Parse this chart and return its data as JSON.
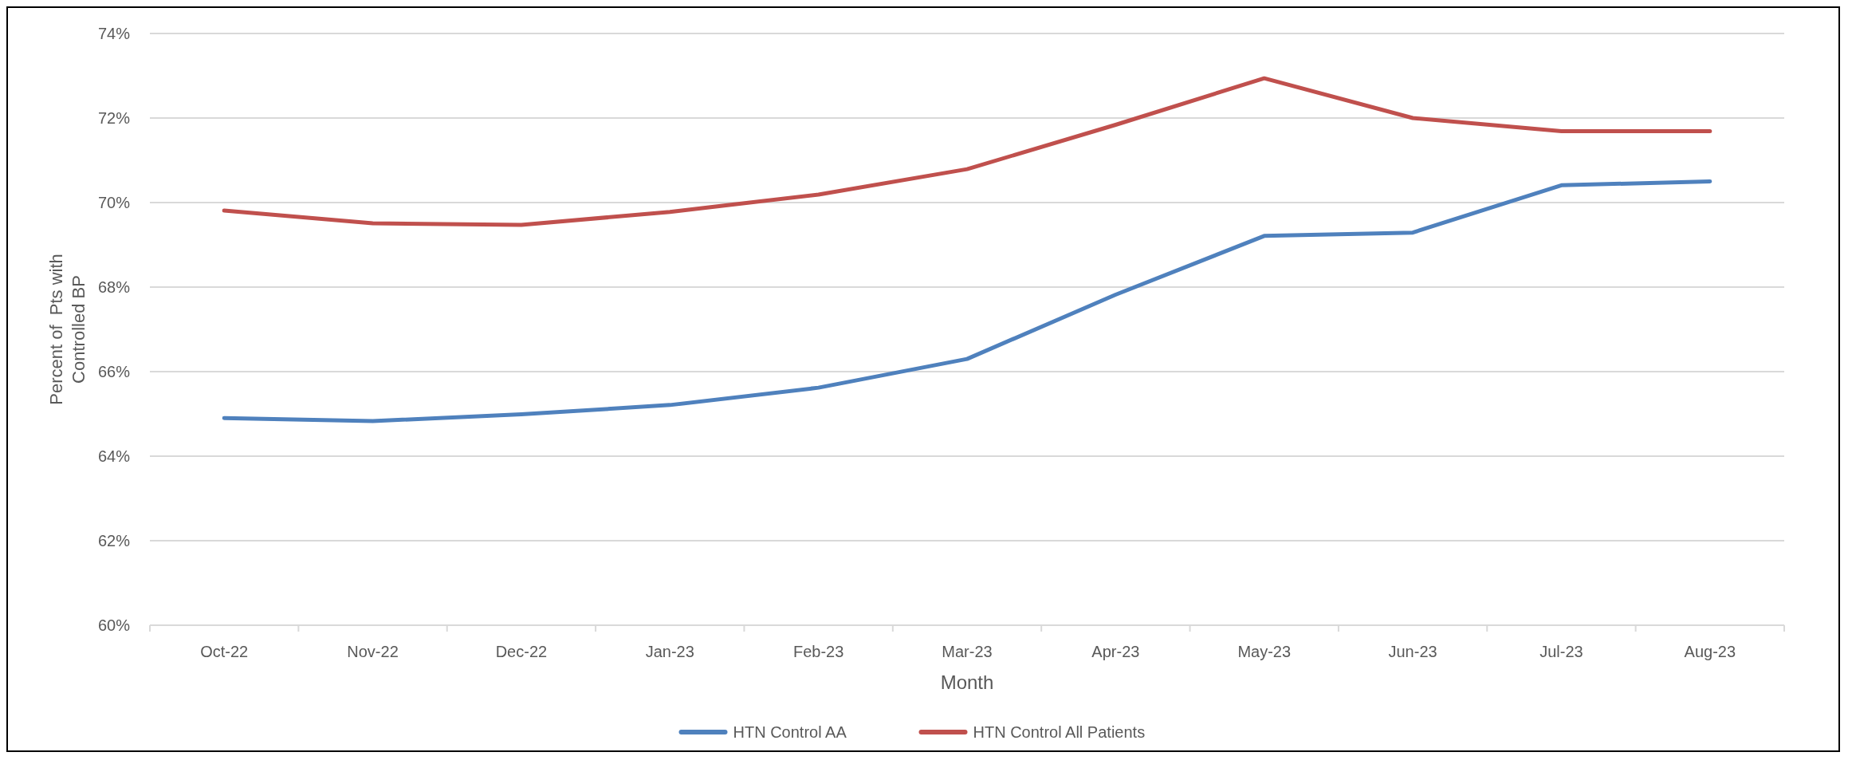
{
  "chart_data": {
    "type": "line",
    "xlabel": "Month",
    "ylabel": "Percent of  Pts with Controlled BP",
    "categories": [
      "Oct-22",
      "Nov-22",
      "Dec-22",
      "Jan-23",
      "Feb-23",
      "Mar-23",
      "Apr-23",
      "May-23",
      "Jun-23",
      "Jul-23",
      "Aug-23"
    ],
    "series": [
      {
        "name": "HTN Control AA",
        "color": "#4f81bd",
        "values": [
          64.9,
          64.83,
          64.99,
          65.21,
          65.62,
          66.3,
          67.82,
          69.21,
          69.29,
          70.41,
          70.5
        ]
      },
      {
        "name": "HTN Control All Patients",
        "color": "#c0504d",
        "values": [
          69.81,
          69.51,
          69.47,
          69.78,
          70.19,
          70.79,
          71.84,
          72.94,
          72.0,
          71.69,
          71.69
        ]
      }
    ],
    "ylim": [
      60,
      74
    ],
    "yticks": [
      {
        "value": 60,
        "label": "60%"
      },
      {
        "value": 62,
        "label": "62%"
      },
      {
        "value": 64,
        "label": "64%"
      },
      {
        "value": 66,
        "label": "66%"
      },
      {
        "value": 68,
        "label": "68%"
      },
      {
        "value": 70,
        "label": "70%"
      },
      {
        "value": 72,
        "label": "72%"
      },
      {
        "value": 74,
        "label": "74%"
      }
    ],
    "grid": "y",
    "legend": "bottom",
    "line_style": "solid",
    "marker": "none"
  }
}
